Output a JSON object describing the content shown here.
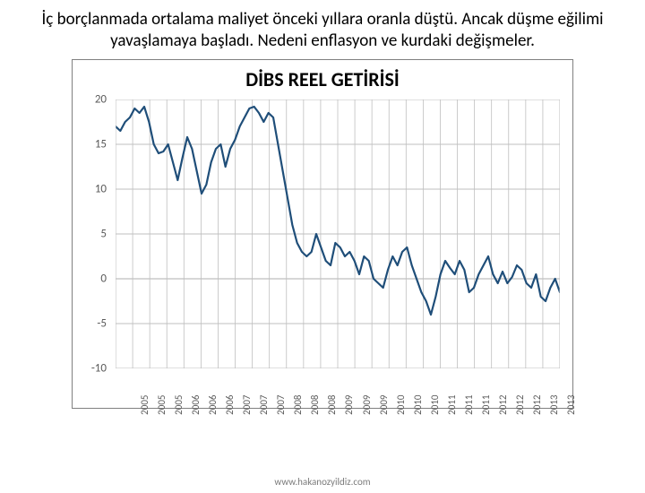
{
  "caption": "İç borçlanmada ortalama maliyet önceki yıllara oranla düştü. Ancak düşme eğilimi yavaşlamaya başladı. Nedeni enflasyon ve kurdaki değişmeler.",
  "footer": "www.hakanozyildiz.com",
  "chart": {
    "type": "line",
    "title": "DİBS REEL GETİRİSİ",
    "title_fontsize": 22,
    "title_color": "#000000",
    "background_color": "#ffffff",
    "border_color": "#808080",
    "grid_color": "#bfbfbf",
    "axis_font_color": "#5a5a5a",
    "axis_fontsize": 13,
    "line_color": "#1f4e79",
    "line_width": 2.2,
    "ylim": [
      -10,
      20
    ],
    "ytick_step": 5,
    "yticks": [
      -10,
      -5,
      0,
      5,
      10,
      15,
      20
    ],
    "x_categories": [
      "2005",
      "2005",
      "2005",
      "2006",
      "2006",
      "2006",
      "2007",
      "2007",
      "2007",
      "2008",
      "2008",
      "2008",
      "2009",
      "2009",
      "2009",
      "2010",
      "2010",
      "2010",
      "2011",
      "2011",
      "2011",
      "2012",
      "2012",
      "2012",
      "2013",
      "2013"
    ],
    "x_label_rotation": -90,
    "series": [
      {
        "name": "DIBS Reel Getirisi",
        "color": "#1f4e79",
        "width": 2.2,
        "values": [
          17.0,
          16.5,
          17.5,
          18.0,
          19.0,
          18.5,
          19.2,
          17.5,
          15.0,
          14.0,
          14.2,
          15.0,
          13.0,
          11.0,
          13.5,
          15.8,
          14.5,
          12.0,
          9.5,
          10.5,
          13.0,
          14.5,
          15.0,
          12.5,
          14.5,
          15.5,
          17.0,
          18.0,
          19.0,
          19.2,
          18.5,
          17.5,
          18.5,
          18.0,
          15.0,
          12.0,
          9.0,
          6.0,
          4.0,
          3.0,
          2.5,
          3.0,
          5.0,
          3.5,
          2.0,
          1.5,
          4.0,
          3.5,
          2.5,
          3.0,
          2.0,
          0.5,
          2.5,
          2.0,
          0.0,
          -0.5,
          -1.0,
          1.0,
          2.5,
          1.5,
          3.0,
          3.5,
          1.5,
          0.0,
          -1.5,
          -2.5,
          -4.0,
          -2.0,
          0.5,
          2.0,
          1.2,
          0.5,
          2.0,
          1.0,
          -1.5,
          -1.0,
          0.5,
          1.5,
          2.5,
          0.5,
          -0.5,
          0.8,
          -0.5,
          0.2,
          1.5,
          1.0,
          -0.5,
          -1.0,
          0.5,
          -2.0,
          -2.5,
          -1.0,
          0.0,
          -1.5
        ]
      }
    ]
  }
}
